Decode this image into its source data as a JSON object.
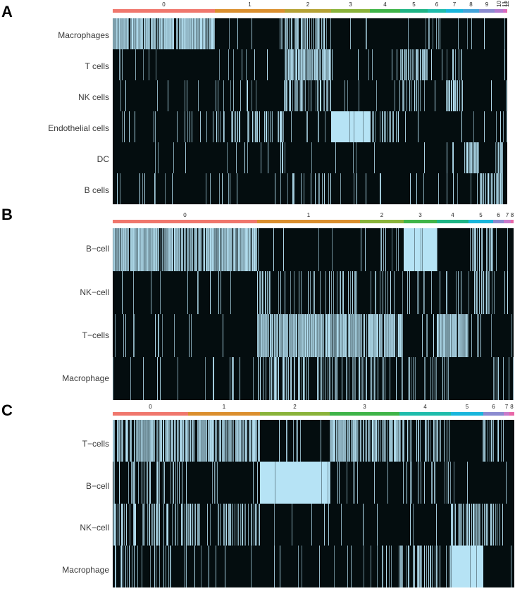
{
  "chart_data": [
    {
      "type": "heatmap",
      "panel": "A",
      "colors": {
        "low": "#040d0f",
        "high": "#b6e3f5"
      },
      "clusters": [
        {
          "label": "0",
          "width": 145,
          "color": "#f0776d"
        },
        {
          "label": "1",
          "width": 99,
          "color": "#db8f2e"
        },
        {
          "label": "2",
          "width": 66,
          "color": "#b5a234"
        },
        {
          "label": "3",
          "width": 55,
          "color": "#8ab33a"
        },
        {
          "label": "4",
          "width": 43,
          "color": "#3fb448"
        },
        {
          "label": "5",
          "width": 39,
          "color": "#1eb485"
        },
        {
          "label": "6",
          "width": 26,
          "color": "#1fbcab"
        },
        {
          "label": "7",
          "width": 24,
          "color": "#19b6dc"
        },
        {
          "label": "8",
          "width": 23,
          "color": "#43a3d9"
        },
        {
          "label": "9",
          "width": 22,
          "color": "#8b8bd0"
        },
        {
          "label": "10",
          "width": 12,
          "color": "#b27ad0"
        },
        {
          "label": "11",
          "width": 4,
          "color": "#d56bc4"
        },
        {
          "label": "12",
          "width": 2,
          "color": "#e868a8"
        }
      ],
      "rows": [
        "Macrophages",
        "T cells",
        "NK cells",
        "Endothelial cells",
        "DC",
        "B cells"
      ],
      "highlight": [
        {
          "row": 0,
          "cluster": 0,
          "level": 0.92
        },
        {
          "row": 0,
          "cluster": 2,
          "level": 0.6
        },
        {
          "row": 0,
          "cluster": 6,
          "level": 0.2
        },
        {
          "row": 1,
          "cluster": 2,
          "level": 0.85
        },
        {
          "row": 1,
          "cluster": 5,
          "level": 0.7
        },
        {
          "row": 1,
          "cluster": 7,
          "level": 0.25
        },
        {
          "row": 2,
          "cluster": 2,
          "level": 0.5
        },
        {
          "row": 2,
          "cluster": 5,
          "level": 0.35
        },
        {
          "row": 2,
          "cluster": 7,
          "level": 0.8
        },
        {
          "row": 3,
          "cluster": 1,
          "level": 0.35
        },
        {
          "row": 3,
          "cluster": 3,
          "level": 1.0
        },
        {
          "row": 3,
          "cluster": 4,
          "level": 0.55
        },
        {
          "row": 4,
          "cluster": 8,
          "level": 0.75
        },
        {
          "row": 4,
          "cluster": 10,
          "level": 0.4
        },
        {
          "row": 5,
          "cluster": 9,
          "level": 0.55
        },
        {
          "row": 5,
          "cluster": 10,
          "level": 0.5
        },
        {
          "row": 5,
          "cluster": 2,
          "level": 0.25
        }
      ]
    },
    {
      "type": "heatmap",
      "panel": "B",
      "colors": {
        "low": "#040d0f",
        "high": "#b6e3f5"
      },
      "clusters": [
        {
          "label": "0",
          "width": 205,
          "color": "#f0776d"
        },
        {
          "label": "1",
          "width": 146,
          "color": "#db8f2e"
        },
        {
          "label": "2",
          "width": 62,
          "color": "#8ab33a"
        },
        {
          "label": "3",
          "width": 47,
          "color": "#3fb448"
        },
        {
          "label": "4",
          "width": 45,
          "color": "#1eb485"
        },
        {
          "label": "5",
          "width": 35,
          "color": "#19b6dc"
        },
        {
          "label": "6",
          "width": 15,
          "color": "#8b8bd0"
        },
        {
          "label": "7",
          "width": 10,
          "color": "#c87acb"
        },
        {
          "label": "8",
          "width": 4,
          "color": "#e868a8"
        }
      ],
      "rows": [
        "B−cell",
        "NK−cell",
        "T−cells",
        "Macrophage"
      ],
      "highlight": [
        {
          "row": 0,
          "cluster": 0,
          "level": 0.9
        },
        {
          "row": 0,
          "cluster": 3,
          "level": 1.0
        },
        {
          "row": 0,
          "cluster": 5,
          "level": 0.45
        },
        {
          "row": 0,
          "cluster": 2,
          "level": 0.15
        },
        {
          "row": 1,
          "cluster": 5,
          "level": 0.35
        },
        {
          "row": 1,
          "cluster": 1,
          "level": 0.25
        },
        {
          "row": 1,
          "cluster": 2,
          "level": 0.3
        },
        {
          "row": 2,
          "cluster": 1,
          "level": 0.9
        },
        {
          "row": 2,
          "cluster": 2,
          "level": 0.85
        },
        {
          "row": 2,
          "cluster": 4,
          "level": 0.95
        },
        {
          "row": 3,
          "cluster": 1,
          "level": 0.4
        },
        {
          "row": 3,
          "cluster": 2,
          "level": 0.35
        },
        {
          "row": 3,
          "cluster": 3,
          "level": 0.25
        },
        {
          "row": 3,
          "cluster": 6,
          "level": 0.3
        }
      ]
    },
    {
      "type": "heatmap",
      "panel": "C",
      "colors": {
        "low": "#040d0f",
        "high": "#b6e3f5"
      },
      "clusters": [
        {
          "label": "0",
          "width": 107,
          "color": "#f0776d"
        },
        {
          "label": "1",
          "width": 102,
          "color": "#db8f2e"
        },
        {
          "label": "2",
          "width": 99,
          "color": "#8ab33a"
        },
        {
          "label": "3",
          "width": 99,
          "color": "#3fb448"
        },
        {
          "label": "4",
          "width": 73,
          "color": "#1fbcab"
        },
        {
          "label": "5",
          "width": 46,
          "color": "#19b6dc"
        },
        {
          "label": "6",
          "width": 29,
          "color": "#8b8bd0"
        },
        {
          "label": "7",
          "width": 8,
          "color": "#c87acb"
        },
        {
          "label": "8",
          "width": 7,
          "color": "#e868a8"
        }
      ],
      "rows": [
        "T−cells",
        "B−cell",
        "NK−cell",
        "Macrophage"
      ],
      "highlight": [
        {
          "row": 0,
          "cluster": 0,
          "level": 0.8
        },
        {
          "row": 0,
          "cluster": 1,
          "level": 0.85
        },
        {
          "row": 0,
          "cluster": 3,
          "level": 0.8
        },
        {
          "row": 0,
          "cluster": 4,
          "level": 0.35
        },
        {
          "row": 0,
          "cluster": 6,
          "level": 0.45
        },
        {
          "row": 1,
          "cluster": 2,
          "level": 1.0
        },
        {
          "row": 1,
          "cluster": 0,
          "level": 0.25
        },
        {
          "row": 1,
          "cluster": 4,
          "level": 0.2
        },
        {
          "row": 2,
          "cluster": 0,
          "level": 0.45
        },
        {
          "row": 2,
          "cluster": 1,
          "level": 0.45
        },
        {
          "row": 2,
          "cluster": 5,
          "level": 0.6
        },
        {
          "row": 2,
          "cluster": 6,
          "level": 0.45
        },
        {
          "row": 3,
          "cluster": 5,
          "level": 1.0
        },
        {
          "row": 3,
          "cluster": 4,
          "level": 0.45
        },
        {
          "row": 3,
          "cluster": 0,
          "level": 0.2
        }
      ]
    }
  ]
}
